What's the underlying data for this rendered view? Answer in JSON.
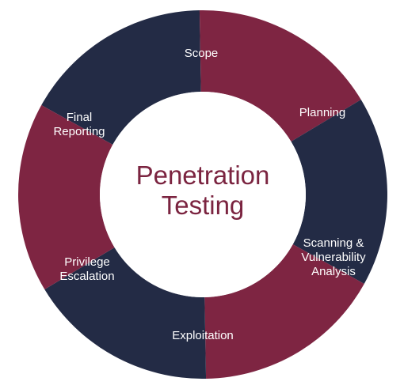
{
  "center": {
    "lines": [
      "Penetration",
      "Testing"
    ],
    "color": "#7b2440"
  },
  "colors": {
    "navy": "#232b45",
    "maroon": "#7e2542",
    "hub": "#ffffff",
    "background": "#ffffff"
  },
  "segments": [
    {
      "id": "scope",
      "lines": [
        "Scope"
      ],
      "color": "#232b45"
    },
    {
      "id": "planning",
      "lines": [
        "Planning"
      ],
      "color": "#7e2542"
    },
    {
      "id": "scanning",
      "lines": [
        "Scanning &",
        "Vulnerability",
        "Analysis"
      ],
      "color": "#232b45"
    },
    {
      "id": "exploitation",
      "lines": [
        "Exploitation"
      ],
      "color": "#7e2542"
    },
    {
      "id": "privilege-escalation",
      "lines": [
        "Privilege",
        "Escalation"
      ],
      "color": "#232b45"
    },
    {
      "id": "final-reporting",
      "lines": [
        "Final",
        "Reporting"
      ],
      "color": "#7e2542"
    }
  ]
}
